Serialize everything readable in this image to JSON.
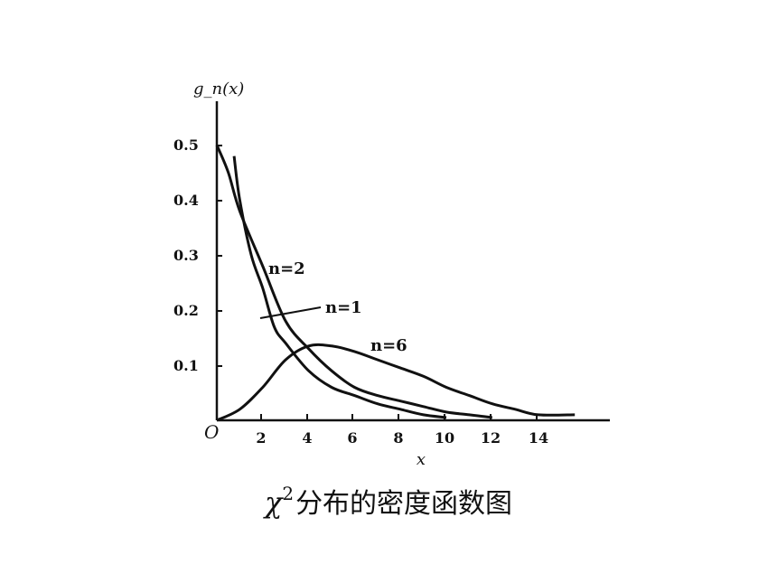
{
  "chart_data": {
    "type": "line",
    "ylabel": "g_n(x)",
    "xlabel": "x",
    "origin_label": "O",
    "xlim": [
      0,
      17
    ],
    "ylim": [
      0,
      0.55
    ],
    "x_ticks": [
      "2",
      "4",
      "6",
      "8",
      "10",
      "12",
      "14"
    ],
    "y_ticks": [
      "0.1",
      "0.2",
      "0.3",
      "0.4",
      "0.5"
    ],
    "grid": false,
    "series": [
      {
        "name": "n=1",
        "x": [
          0.75,
          1.0,
          1.5,
          2.0,
          2.5,
          3.0,
          4.0,
          5.0,
          6.0,
          7.0,
          8.0,
          9.0,
          10.0
        ],
        "y": [
          0.48,
          0.4,
          0.3,
          0.24,
          0.17,
          0.14,
          0.09,
          0.06,
          0.045,
          0.03,
          0.02,
          0.01,
          0.005
        ]
      },
      {
        "name": "n=2",
        "x": [
          0,
          0.5,
          1,
          2,
          3,
          4,
          5,
          6,
          7,
          8,
          9,
          10,
          11,
          12
        ],
        "y": [
          0.5,
          0.45,
          0.38,
          0.28,
          0.18,
          0.13,
          0.09,
          0.06,
          0.045,
          0.035,
          0.025,
          0.015,
          0.01,
          0.005
        ]
      },
      {
        "name": "n=6",
        "x": [
          0,
          1,
          2,
          3,
          4,
          5,
          6,
          7,
          8,
          9,
          10,
          11,
          12,
          13,
          14,
          15.6
        ],
        "y": [
          0,
          0.02,
          0.06,
          0.11,
          0.135,
          0.135,
          0.125,
          0.11,
          0.095,
          0.08,
          0.06,
          0.045,
          0.03,
          0.02,
          0.01,
          0.01
        ]
      }
    ],
    "curve_labels": [
      "n=2",
      "n=1",
      "n=6"
    ]
  },
  "caption": {
    "symbol": "χ",
    "superscript": "2",
    "text": "分布的密度函数图"
  }
}
